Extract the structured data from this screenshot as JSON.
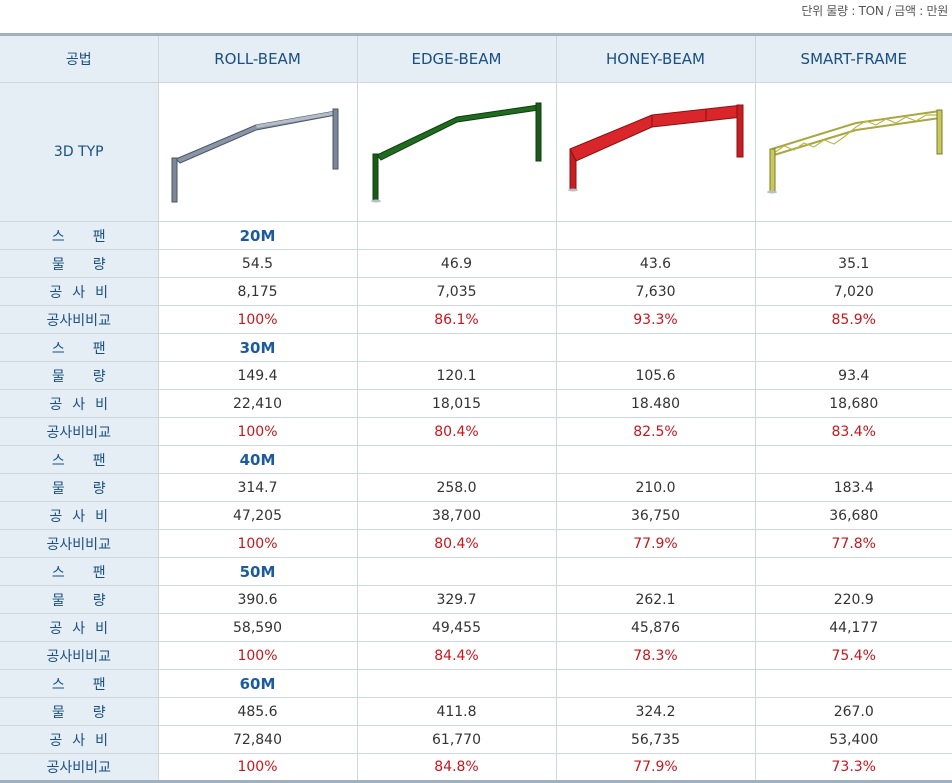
{
  "unit_note": "단위 물량 : TON / 금액 : 만원",
  "header": {
    "method_label": "공법",
    "columns": [
      "ROLL-BEAM",
      "EDGE-BEAM",
      "HONEY-BEAM",
      "SMART-FRAME"
    ]
  },
  "image_row": {
    "label": "3D TYP",
    "frames": [
      {
        "name": "roll-beam-frame-icon",
        "color": "#8a95a5",
        "dark": "#4a5566"
      },
      {
        "name": "edge-beam-frame-icon",
        "color": "#1f6b1f",
        "dark": "#0d3d0d"
      },
      {
        "name": "honey-beam-frame-icon",
        "color": "#d8262a",
        "dark": "#8c1012"
      },
      {
        "name": "smart-frame-truss-icon",
        "color": "#c9c85a",
        "dark": "#7d7c2a"
      }
    ]
  },
  "row_labels": {
    "span": "스팬",
    "quantity": "물량",
    "cost": "공사비",
    "ratio": "공사비비교"
  },
  "groups": [
    {
      "span": "20M",
      "quantity": [
        "54.5",
        "46.9",
        "43.6",
        "35.1"
      ],
      "cost": [
        "8,175",
        "7,035",
        "7,630",
        "7,020"
      ],
      "ratio": [
        "100%",
        "86.1%",
        "93.3%",
        "85.9%"
      ]
    },
    {
      "span": "30M",
      "quantity": [
        "149.4",
        "120.1",
        "105.6",
        "93.4"
      ],
      "cost": [
        "22,410",
        "18,015",
        "18.480",
        "18,680"
      ],
      "ratio": [
        "100%",
        "80.4%",
        "82.5%",
        "83.4%"
      ]
    },
    {
      "span": "40M",
      "quantity": [
        "314.7",
        "258.0",
        "210.0",
        "183.4"
      ],
      "cost": [
        "47,205",
        "38,700",
        "36,750",
        "36,680"
      ],
      "ratio": [
        "100%",
        "80.4%",
        "77.9%",
        "77.8%"
      ]
    },
    {
      "span": "50M",
      "quantity": [
        "390.6",
        "329.7",
        "262.1",
        "220.9"
      ],
      "cost": [
        "58,590",
        "49,455",
        "45,876",
        "44,177"
      ],
      "ratio": [
        "100%",
        "84.4%",
        "78.3%",
        "75.4%"
      ]
    },
    {
      "span": "60M",
      "quantity": [
        "485.6",
        "411.8",
        "324.2",
        "267.0"
      ],
      "cost": [
        "72,840",
        "61,770",
        "56,735",
        "53,400"
      ],
      "ratio": [
        "100%",
        "84.8%",
        "77.9%",
        "73.3%"
      ]
    }
  ]
}
